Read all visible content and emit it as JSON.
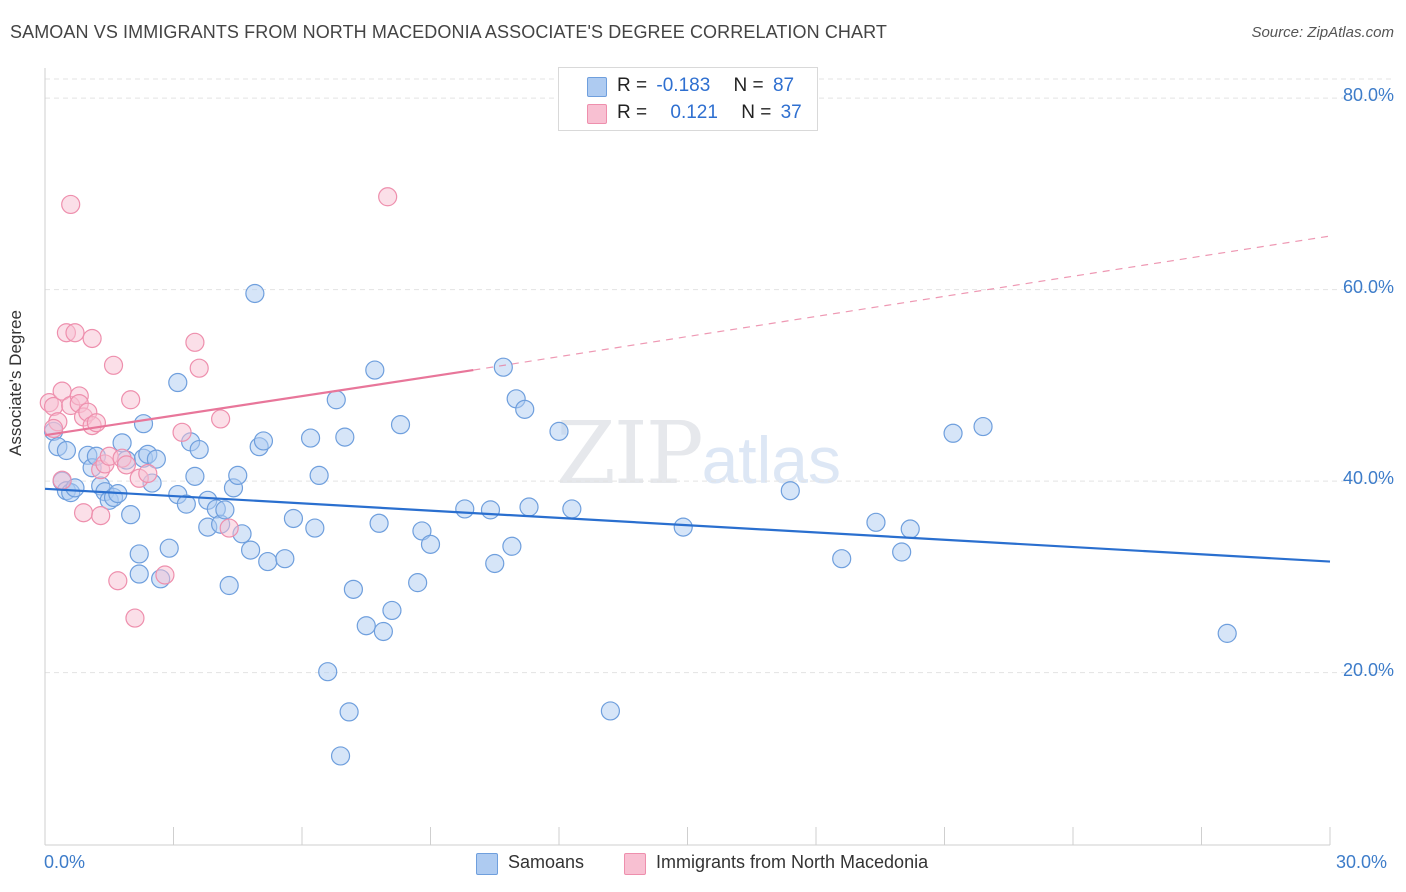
{
  "header": {
    "title": "SAMOAN VS IMMIGRANTS FROM NORTH MACEDONIA ASSOCIATE'S DEGREE CORRELATION CHART",
    "source": "Source: ZipAtlas.com"
  },
  "watermark": {
    "zip": "ZIP",
    "atlas": "atlas"
  },
  "legend_top": {
    "rows": [
      {
        "r_label": "R =",
        "r_value": "-0.183",
        "n_label": "N =",
        "n_value": "87"
      },
      {
        "r_label": "R =",
        "r_value": "0.121",
        "n_label": "N =",
        "n_value": "37"
      }
    ]
  },
  "legend_bottom": {
    "items": [
      "Samoans",
      "Immigrants from North Macedonia"
    ]
  },
  "colors": {
    "samoans_fill": "#aecbf1",
    "samoans_stroke": "#6f9fdd",
    "samoans_line": "#2a6fcf",
    "macedonia_fill": "#f8c0d2",
    "macedonia_stroke": "#ee8fad",
    "macedonia_line": "#e8769a",
    "tick_label": "#3d7cc9",
    "grid": "#e3e3e3"
  },
  "chart_data": {
    "type": "scatter",
    "title": "SAMOAN VS IMMIGRANTS FROM NORTH MACEDONIA ASSOCIATE'S DEGREE CORRELATION CHART",
    "xlabel": "",
    "ylabel": "Associate's Degree",
    "xlim": [
      0,
      30
    ],
    "ylim": [
      2,
      82
    ],
    "x_tick_labels": [
      "0.0%",
      "30.0%"
    ],
    "y_ticks": [
      20,
      40,
      60,
      80
    ],
    "y_tick_labels": [
      "20.0%",
      "40.0%",
      "60.0%",
      "80.0%"
    ],
    "grid": true,
    "legend_placement": "bottom-center",
    "series": [
      {
        "name": "Samoans",
        "r": -0.183,
        "n": 87,
        "trend": {
          "x0": 0.0,
          "y0": 39.2,
          "x1": 30.0,
          "y1": 31.6
        },
        "points": [
          [
            0.2,
            45.2
          ],
          [
            0.3,
            43.6
          ],
          [
            0.4,
            40.0
          ],
          [
            0.5,
            39.0
          ],
          [
            0.6,
            38.8
          ],
          [
            0.7,
            39.3
          ],
          [
            1.0,
            42.7
          ],
          [
            1.1,
            41.4
          ],
          [
            1.2,
            42.6
          ],
          [
            1.3,
            39.5
          ],
          [
            1.4,
            38.9
          ],
          [
            1.5,
            38.0
          ],
          [
            1.6,
            38.3
          ],
          [
            1.7,
            38.7
          ],
          [
            1.8,
            44.0
          ],
          [
            1.9,
            42.2
          ],
          [
            2.0,
            36.5
          ],
          [
            2.2,
            30.3
          ],
          [
            2.2,
            32.4
          ],
          [
            2.3,
            42.4
          ],
          [
            2.3,
            46.0
          ],
          [
            2.4,
            42.8
          ],
          [
            2.5,
            39.8
          ],
          [
            2.6,
            42.3
          ],
          [
            2.7,
            29.8
          ],
          [
            2.9,
            33.0
          ],
          [
            3.1,
            50.3
          ],
          [
            3.1,
            38.6
          ],
          [
            3.3,
            37.6
          ],
          [
            3.4,
            44.1
          ],
          [
            3.5,
            40.5
          ],
          [
            3.6,
            43.3
          ],
          [
            3.8,
            35.2
          ],
          [
            3.8,
            38.0
          ],
          [
            4.0,
            37.1
          ],
          [
            4.1,
            35.5
          ],
          [
            4.2,
            37.0
          ],
          [
            4.3,
            29.1
          ],
          [
            4.4,
            39.3
          ],
          [
            4.5,
            40.6
          ],
          [
            4.6,
            34.5
          ],
          [
            4.8,
            32.8
          ],
          [
            4.9,
            59.6
          ],
          [
            5.0,
            43.6
          ],
          [
            5.1,
            44.2
          ],
          [
            5.2,
            31.6
          ],
          [
            5.6,
            31.9
          ],
          [
            5.8,
            36.1
          ],
          [
            6.2,
            44.5
          ],
          [
            6.3,
            35.1
          ],
          [
            6.4,
            40.6
          ],
          [
            6.6,
            20.1
          ],
          [
            6.8,
            48.5
          ],
          [
            6.9,
            11.3
          ],
          [
            7.0,
            44.6
          ],
          [
            7.1,
            15.9
          ],
          [
            7.2,
            28.7
          ],
          [
            7.5,
            24.9
          ],
          [
            7.7,
            51.6
          ],
          [
            7.8,
            35.6
          ],
          [
            7.9,
            24.3
          ],
          [
            8.1,
            26.5
          ],
          [
            8.3,
            45.9
          ],
          [
            8.7,
            29.4
          ],
          [
            8.8,
            34.8
          ],
          [
            9.0,
            33.4
          ],
          [
            9.8,
            37.1
          ],
          [
            10.4,
            37.0
          ],
          [
            10.5,
            31.4
          ],
          [
            10.7,
            51.9
          ],
          [
            10.9,
            33.2
          ],
          [
            11.0,
            48.6
          ],
          [
            11.2,
            47.5
          ],
          [
            11.3,
            37.3
          ],
          [
            12.0,
            45.2
          ],
          [
            12.3,
            37.1
          ],
          [
            13.2,
            16.0
          ],
          [
            14.9,
            35.2
          ],
          [
            17.4,
            39.0
          ],
          [
            18.6,
            31.9
          ],
          [
            19.4,
            35.7
          ],
          [
            20.0,
            32.6
          ],
          [
            20.2,
            35.0
          ],
          [
            21.2,
            45.0
          ],
          [
            21.9,
            45.7
          ],
          [
            27.6,
            24.1
          ],
          [
            0.5,
            43.2
          ]
        ]
      },
      {
        "name": "Immigrants from North Macedonia",
        "r": 0.121,
        "n": 37,
        "trend": {
          "x0": 0.0,
          "y0": 44.8,
          "x1": 10.0,
          "y1": 51.6,
          "dash_x1": 30.0,
          "dash_y1": 65.6
        },
        "points": [
          [
            0.1,
            48.2
          ],
          [
            0.2,
            47.8
          ],
          [
            0.3,
            46.2
          ],
          [
            0.4,
            49.4
          ],
          [
            0.4,
            40.1
          ],
          [
            0.5,
            55.5
          ],
          [
            0.6,
            47.9
          ],
          [
            0.6,
            68.9
          ],
          [
            0.7,
            55.5
          ],
          [
            0.8,
            48.9
          ],
          [
            0.8,
            48.1
          ],
          [
            0.9,
            46.7
          ],
          [
            0.9,
            36.7
          ],
          [
            1.0,
            47.2
          ],
          [
            1.1,
            54.9
          ],
          [
            1.1,
            45.8
          ],
          [
            1.2,
            46.1
          ],
          [
            1.3,
            41.2
          ],
          [
            1.3,
            36.4
          ],
          [
            1.4,
            41.8
          ],
          [
            1.5,
            42.6
          ],
          [
            1.6,
            52.1
          ],
          [
            1.7,
            29.6
          ],
          [
            1.8,
            42.4
          ],
          [
            1.9,
            41.7
          ],
          [
            2.0,
            48.5
          ],
          [
            2.1,
            25.7
          ],
          [
            2.2,
            40.3
          ],
          [
            2.4,
            40.8
          ],
          [
            2.8,
            30.2
          ],
          [
            3.2,
            45.1
          ],
          [
            3.5,
            54.5
          ],
          [
            3.6,
            51.8
          ],
          [
            4.1,
            46.5
          ],
          [
            4.3,
            35.1
          ],
          [
            8.0,
            69.7
          ],
          [
            0.2,
            45.5
          ]
        ]
      }
    ]
  }
}
